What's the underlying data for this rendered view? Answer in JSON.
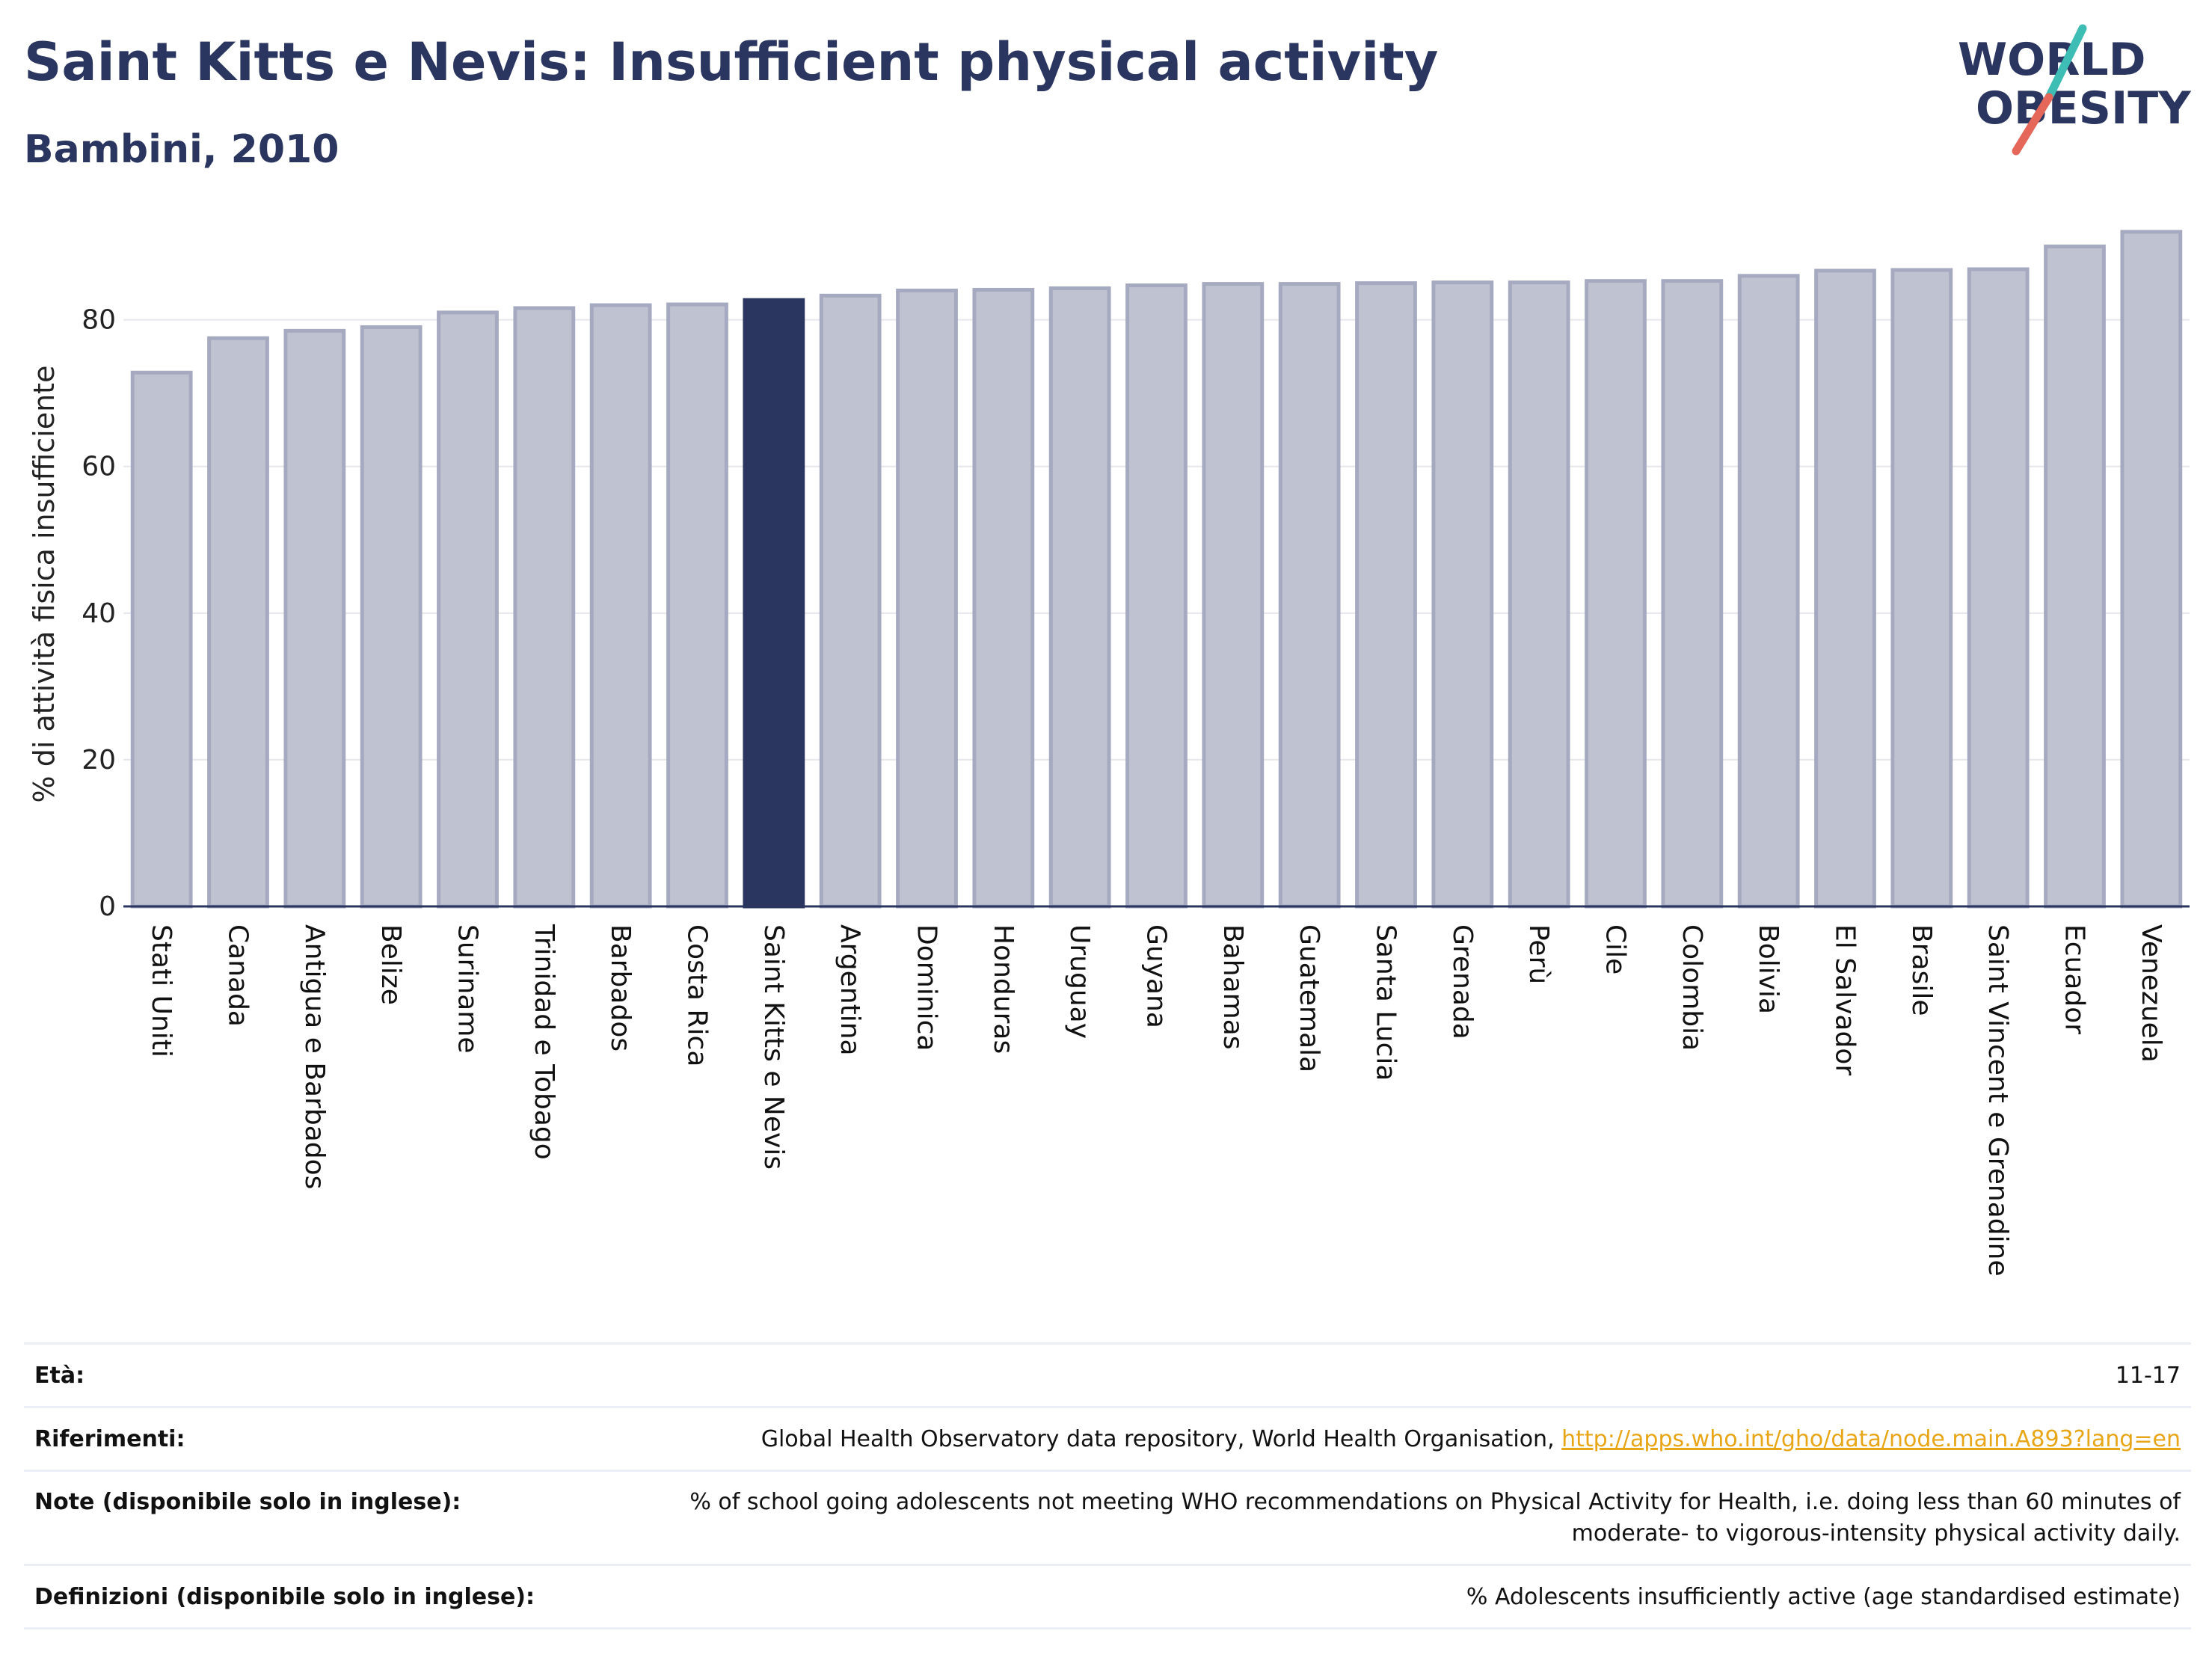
{
  "header": {
    "title": "Saint Kitts e Nevis: Insufficient physical activity",
    "subtitle": "Bambini, 2010"
  },
  "logo": {
    "line1": "WORLD",
    "line2": "OBESITY",
    "colors": {
      "text": "#2a3560",
      "slash_teal": "#3dbdb4",
      "slash_red": "#e4675a"
    }
  },
  "chart_data": {
    "type": "bar",
    "ylabel": "% di attività fisica insufficiente",
    "xlabel": "",
    "ylim": [
      0,
      92
    ],
    "yticks": [
      0,
      20,
      40,
      60,
      80
    ],
    "grid": true,
    "highlight": "Saint Kitts e Nevis",
    "colors": {
      "bar": "#bfc2d0",
      "bar_edge": "#a6aac0",
      "highlight": "#2a3560",
      "grid": "#e6e6ec"
    },
    "categories": [
      "Stati Uniti",
      "Canada",
      "Antigua e Barbados",
      "Belize",
      "Suriname",
      "Trinidad e Tobago",
      "Barbados",
      "Costa Rica",
      "Saint Kitts e Nevis",
      "Argentina",
      "Dominica",
      "Honduras",
      "Uruguay",
      "Guyana",
      "Bahamas",
      "Guatemala",
      "Santa Lucia",
      "Grenada",
      "Perù",
      "Cile",
      "Colombia",
      "Bolivia",
      "El Salvador",
      "Brasile",
      "Saint Vincent e Grenadine",
      "Ecuador",
      "Venezuela"
    ],
    "values": [
      72.8,
      77.5,
      78.5,
      79.0,
      81.0,
      81.6,
      82.0,
      82.1,
      82.7,
      83.3,
      84.0,
      84.1,
      84.3,
      84.7,
      84.9,
      84.9,
      85.0,
      85.1,
      85.1,
      85.3,
      85.3,
      86.0,
      86.7,
      86.8,
      86.9,
      90.0,
      92.0
    ]
  },
  "meta": {
    "age_label": "Età:",
    "age_value": "11-17",
    "refs_label": "Riferimenti:",
    "refs_text": "Global Health Observatory data repository, World Health Organisation, ",
    "refs_link": "http://apps.who.int/gho/data/node.main.A893?lang=en",
    "notes_label": "Note (disponibile solo in inglese):",
    "notes_line1": "% of school going adolescents not meeting WHO recommendations on Physical Activity for Health, i.e. doing less than 60 minutes of",
    "notes_line2": "moderate- to vigorous-intensity physical activity daily.",
    "defs_label": "Definizioni (disponibile solo in inglese):",
    "defs_value": "% Adolescents insufficiently active (age standardised estimate)"
  }
}
